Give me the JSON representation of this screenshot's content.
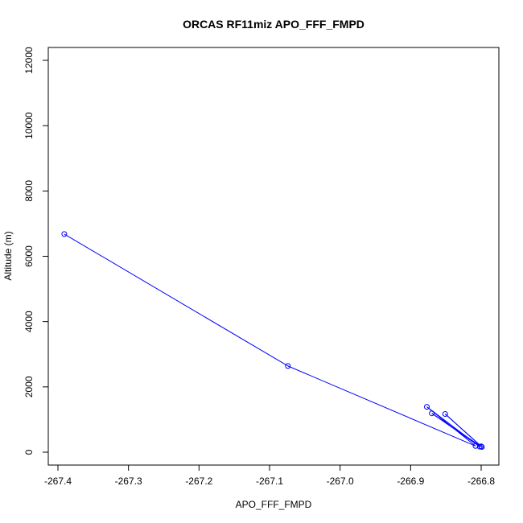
{
  "chart_data": {
    "type": "line",
    "title": "ORCAS RF11miz APO_FFF_FMPD",
    "xlabel": "APO_FFF_FMPD",
    "ylabel": "Altitude (m)",
    "xlim": [
      -267.4,
      -266.8
    ],
    "ylim": [
      0,
      12000
    ],
    "xticks": [
      -267.4,
      -267.3,
      -267.2,
      -267.1,
      -267.0,
      -266.9,
      -266.8
    ],
    "yticks": [
      0,
      2000,
      4000,
      6000,
      8000,
      10000,
      12000
    ],
    "xtick_labels": [
      "-267.4",
      "-267.3",
      "-267.2",
      "-267.1",
      "-267.0",
      "-266.9",
      "-266.8"
    ],
    "ytick_labels": [
      "0",
      "2000",
      "4000",
      "6000",
      "8000",
      "10000",
      "12000"
    ],
    "grid": false,
    "series": [
      {
        "color": "#0000ff",
        "marker": "open-circle",
        "points": [
          {
            "x": -267.391,
            "y": 6680
          },
          {
            "x": -267.074,
            "y": 2640
          },
          {
            "x": -266.808,
            "y": 190
          },
          {
            "x": -266.877,
            "y": 1390
          },
          {
            "x": -266.802,
            "y": 170
          },
          {
            "x": -266.87,
            "y": 1190
          },
          {
            "x": -266.799,
            "y": 160
          },
          {
            "x": -266.851,
            "y": 1170
          },
          {
            "x": -266.8,
            "y": 180
          }
        ]
      }
    ]
  }
}
